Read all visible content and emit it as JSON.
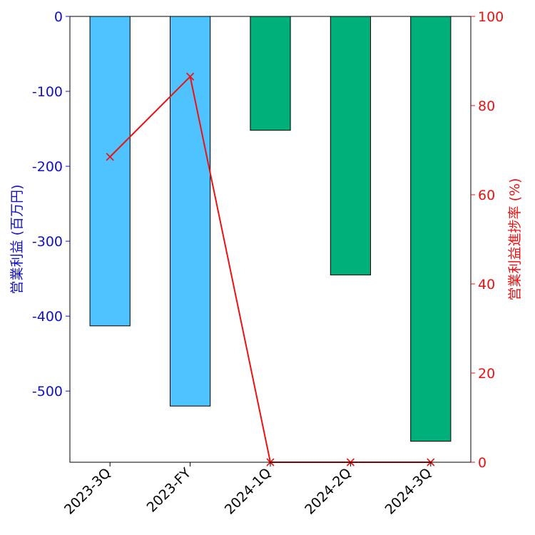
{
  "chart_data": {
    "type": "bar",
    "categories": [
      "2023-3Q",
      "2023-FY",
      "2024-1Q",
      "2024-2Q",
      "2024-3Q"
    ],
    "bars": {
      "values": [
        -413,
        -520,
        -152,
        -345,
        -567
      ],
      "colors": [
        "#4fc3ff",
        "#4fc3ff",
        "#00b07a",
        "#00b07a",
        "#00b07a"
      ],
      "edge_color": "#000000"
    },
    "line": {
      "values": [
        68.5,
        86.5,
        0,
        0,
        0
      ],
      "color": "#ee1111",
      "marker": "x"
    },
    "left_axis": {
      "label": "営業利益 (百万円)",
      "color": "#1111cc",
      "ylim": [
        -595,
        0
      ],
      "ticks": [
        0,
        -100,
        -200,
        -300,
        -400,
        -500
      ],
      "tick_labels": [
        "0",
        "-100",
        "-200",
        "-300",
        "-400",
        "-500"
      ]
    },
    "right_axis": {
      "label": "営業利益進捗率 (%)",
      "color": "#ee1111",
      "ylim": [
        0,
        100
      ],
      "ticks": [
        0,
        20,
        40,
        60,
        80,
        100
      ],
      "tick_labels": [
        "0",
        "20",
        "40",
        "60",
        "80",
        "100"
      ]
    },
    "grid": false
  }
}
